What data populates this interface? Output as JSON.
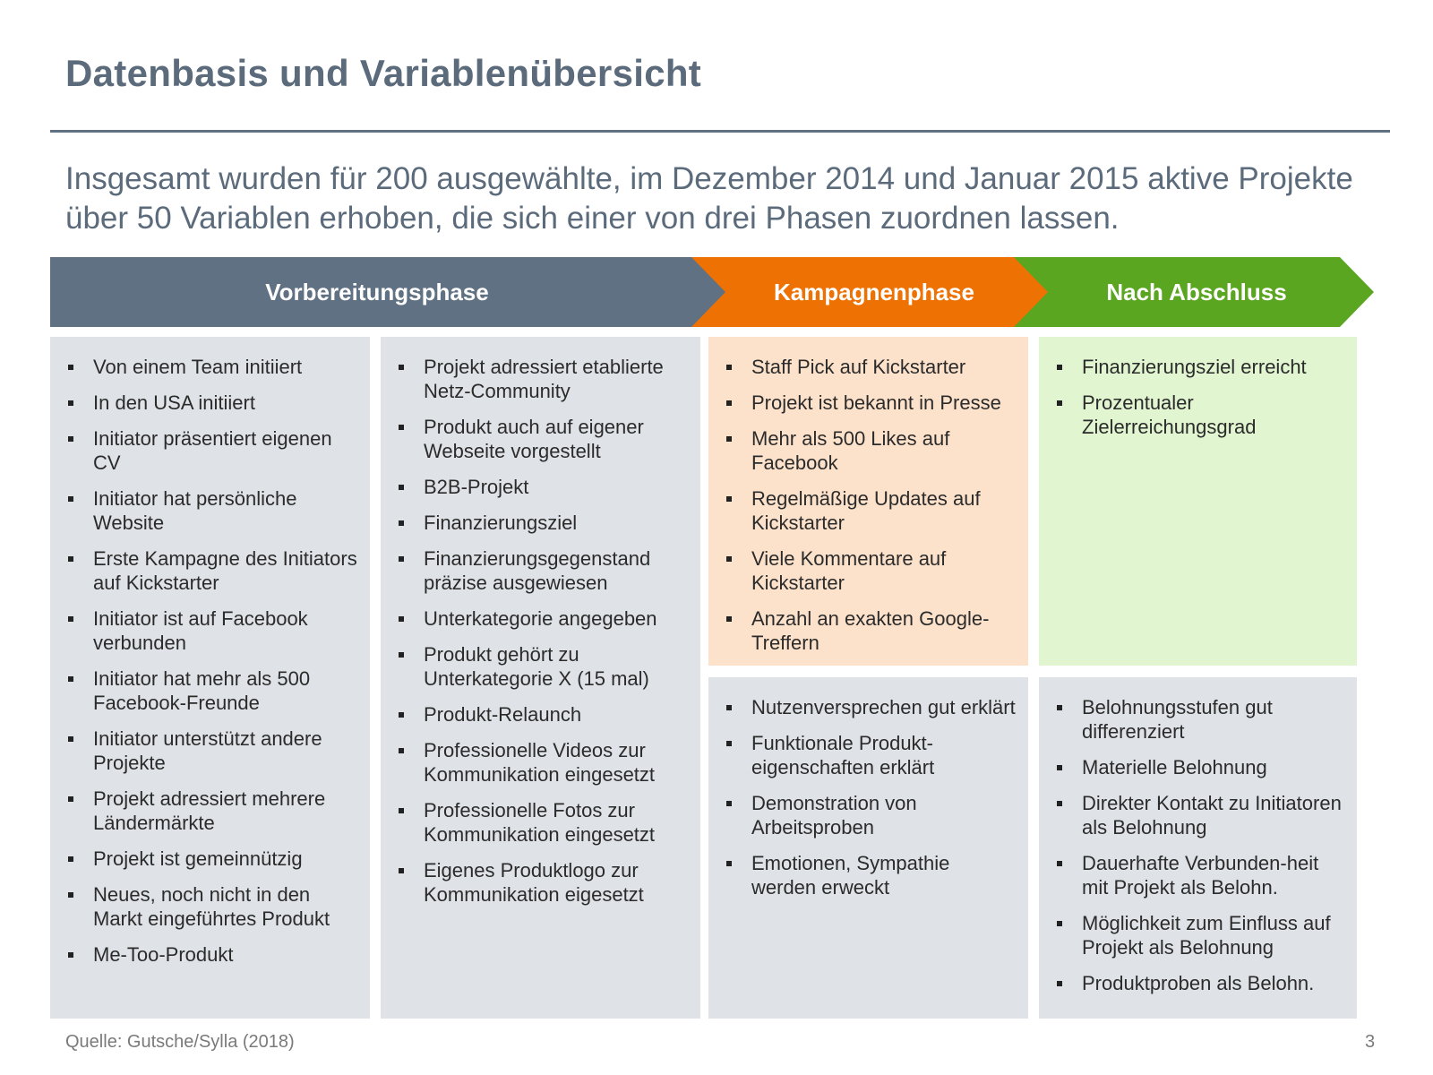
{
  "title": "Datenbasis und Variablenübersicht",
  "subtitle": "Insgesamt wurden für 200 ausgewählte, im Dezember 2014 und Januar 2015 aktive Projekte über 50 Variablen erhoben, die sich einer von drei Phasen zuordnen lassen.",
  "colors": {
    "prep": "#5f7183",
    "campaign": "#ee7203",
    "after": "#5aa620",
    "prep_bg": "#dfe2e6",
    "campaign_bg": "#fde2cb",
    "after_bg": "#e1f5d0"
  },
  "phases": [
    {
      "label": "Vorbereitungsphase"
    },
    {
      "label": "Kampagnenphase"
    },
    {
      "label": "Nach Abschluss"
    }
  ],
  "columns": {
    "prep1": [
      "Von einem Team initiiert",
      "In den USA initiiert",
      "Initiator präsentiert eigenen CV",
      "Initiator hat persönliche Website",
      "Erste Kampagne des Initiators auf Kickstarter",
      "Initiator ist auf Facebook verbunden",
      "Initiator hat mehr als 500 Facebook-Freunde",
      "Initiator unterstützt andere Projekte",
      "Projekt adressiert mehrere Ländermärkte",
      "Projekt ist gemeinnützig",
      "Neues, noch nicht in den Markt eingeführtes Produkt",
      "Me-Too-Produkt"
    ],
    "prep2": [
      "Projekt adressiert etablierte Netz-Community",
      "Produkt auch auf eigener Webseite vorgestellt",
      "B2B-Projekt",
      "Finanzierungsziel",
      "Finanzierungsgegenstand präzise ausgewiesen",
      "Unterkategorie angegeben",
      "Produkt gehört zu Unterkategorie X (15 mal)",
      "Produkt-Relaunch",
      "Professionelle Videos zur Kommunikation eingesetzt",
      "Professionelle Fotos zur Kommunikation eingesetzt",
      "Eigenes Produktlogo zur Kommunikation eigesetzt"
    ],
    "campaign_top": [
      "Staff Pick auf Kickstarter",
      "Projekt ist bekannt in Presse",
      "Mehr als 500 Likes auf Facebook",
      "Regelmäßige Updates auf Kickstarter",
      "Viele Kommentare auf Kickstarter",
      "Anzahl an exakten Google-Treffern"
    ],
    "campaign_bottom": [
      "Nutzenversprechen gut erklärt",
      "Funktionale Produkt-eigenschaften erklärt",
      "Demonstration von Arbeitsproben",
      "Emotionen, Sympathie werden erweckt"
    ],
    "after_top": [
      "Finanzierungsziel erreicht",
      "Prozentualer Zielerreichungsgrad"
    ],
    "after_bottom": [
      "Belohnungsstufen gut differenziert",
      "Materielle Belohnung",
      "Direkter Kontakt zu Initiatoren als Belohnung",
      "Dauerhafte Verbunden-heit mit Projekt als Belohn.",
      "Möglichkeit zum Einfluss auf Projekt als Belohnung",
      "Produktproben als Belohn."
    ]
  },
  "footer": {
    "source": "Quelle: Gutsche/Sylla (2018)",
    "page": "3"
  }
}
